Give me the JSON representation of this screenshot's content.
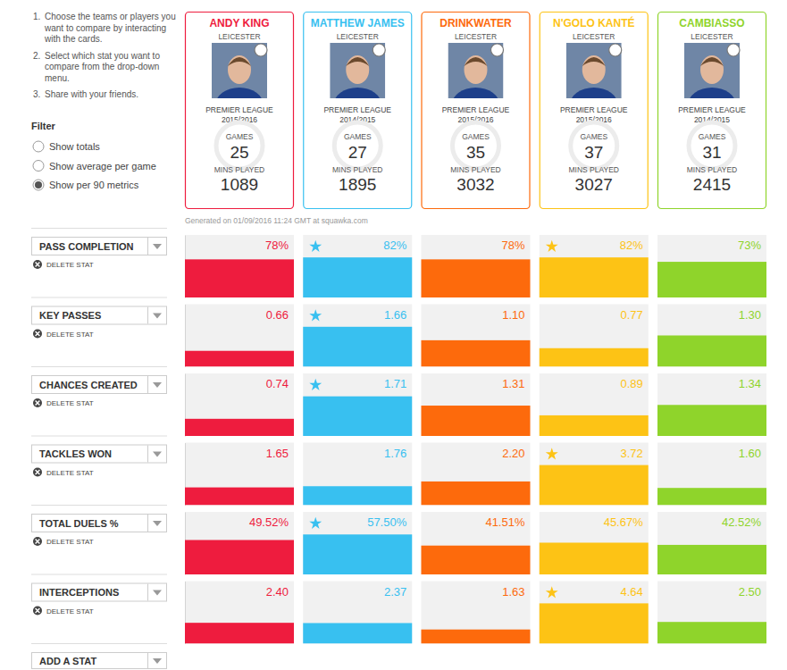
{
  "instructions": [
    {
      "number": "1.",
      "text": "Choose the teams or players you want to compare by interacting with the cards."
    },
    {
      "number": "2.",
      "text": "Select which stat you want to compare from the drop-down menu."
    },
    {
      "number": "3.",
      "text": "Share with your friends."
    }
  ],
  "filter": {
    "title": "Filter",
    "options": [
      "Show totals",
      "Show average per game",
      "Show per 90 metrics"
    ],
    "selected": 2
  },
  "cards": [
    {
      "name": "ANDY KING",
      "club": "LEICESTER",
      "league": "PREMIER LEAGUE",
      "season": "2015/2016",
      "games_label": "GAMES",
      "games": 25,
      "mins_label": "MINS PLAYED",
      "mins": 1089,
      "color": "#ee1c3e"
    },
    {
      "name": "MATTHEW JAMES",
      "club": "LEICESTER",
      "league": "PREMIER LEAGUE",
      "season": "2014/2015",
      "games_label": "GAMES",
      "games": 27,
      "mins_label": "MINS PLAYED",
      "mins": 1895,
      "color": "#38c0f0"
    },
    {
      "name": "DRINKWATER",
      "club": "LEICESTER",
      "league": "PREMIER LEAGUE",
      "season": "2015/2016",
      "games_label": "GAMES",
      "games": 35,
      "mins_label": "MINS PLAYED",
      "mins": 3032,
      "color": "#fd6a0c"
    },
    {
      "name": "N'GOLO KANTÉ",
      "club": "LEICESTER",
      "league": "PREMIER LEAGUE",
      "season": "2015/2016",
      "games_label": "GAMES",
      "games": 37,
      "mins_label": "MINS PLAYED",
      "mins": 3027,
      "color": "#fdc315"
    },
    {
      "name": "CAMBIASSO",
      "club": "LEICESTER",
      "league": "PREMIER LEAGUE",
      "season": "2014/2015",
      "games_label": "GAMES",
      "games": 31,
      "mins_label": "MINS PLAYED",
      "mins": 2415,
      "color": "#8fd42b"
    }
  ],
  "generated": "Generated on 01/09/2016 11:24 GMT at squawka.com",
  "delete_label": "DELETE STAT",
  "add_stat": "ADD A STAT",
  "chart_data": [
    {
      "type": "bar",
      "title": "PASS COMPLETION",
      "categories": [
        null,
        null,
        null,
        null,
        null
      ],
      "values": [
        78,
        82,
        78,
        82,
        73
      ],
      "value_labels": [
        "78%",
        "82%",
        "78%",
        "82%",
        "73%"
      ],
      "starred": [
        false,
        true,
        false,
        true,
        false
      ],
      "colors": [
        "#ee1c3e",
        "#38c0f0",
        "#fd6a0c",
        "#fdc315",
        "#8fd42b"
      ],
      "ylim": [
        0,
        128
      ],
      "data_labels": true,
      "tick_labels": false
    },
    {
      "type": "bar",
      "title": "KEY PASSES",
      "categories": [
        null,
        null,
        null,
        null,
        null
      ],
      "values": [
        0.66,
        1.66,
        1.1,
        0.77,
        1.3
      ],
      "value_labels": [
        "0.66",
        "1.66",
        "1.10",
        "0.77",
        "1.30"
      ],
      "starred": [
        false,
        true,
        false,
        false,
        false
      ],
      "colors": [
        "#ee1c3e",
        "#38c0f0",
        "#fd6a0c",
        "#fdc315",
        "#8fd42b"
      ],
      "ylim": [
        0,
        2.6
      ],
      "data_labels": true,
      "tick_labels": false
    },
    {
      "type": "bar",
      "title": "CHANCES CREATED",
      "categories": [
        null,
        null,
        null,
        null,
        null
      ],
      "values": [
        0.74,
        1.71,
        1.31,
        0.89,
        1.34
      ],
      "value_labels": [
        "0.74",
        "1.71",
        "1.31",
        "0.89",
        "1.34"
      ],
      "starred": [
        false,
        true,
        false,
        false,
        false
      ],
      "colors": [
        "#ee1c3e",
        "#38c0f0",
        "#fd6a0c",
        "#fdc315",
        "#8fd42b"
      ],
      "ylim": [
        0,
        2.7
      ],
      "data_labels": true,
      "tick_labels": false
    },
    {
      "type": "bar",
      "title": "TACKLES WON",
      "categories": [
        null,
        null,
        null,
        null,
        null
      ],
      "values": [
        1.65,
        1.76,
        2.2,
        3.72,
        1.6
      ],
      "value_labels": [
        "1.65",
        "1.76",
        "2.20",
        "3.72",
        "1.60"
      ],
      "starred": [
        false,
        false,
        false,
        true,
        false
      ],
      "colors": [
        "#ee1c3e",
        "#38c0f0",
        "#fd6a0c",
        "#fdc315",
        "#8fd42b"
      ],
      "ylim": [
        0,
        5.8
      ],
      "data_labels": true,
      "tick_labels": false
    },
    {
      "type": "bar",
      "title": "TOTAL DUELS %",
      "categories": [
        null,
        null,
        null,
        null,
        null
      ],
      "values": [
        49.52,
        57.5,
        41.51,
        45.67,
        42.52
      ],
      "value_labels": [
        "49.52%",
        "57.50%",
        "41.51%",
        "45.67%",
        "42.52%"
      ],
      "starred": [
        false,
        true,
        false,
        false,
        false
      ],
      "colors": [
        "#ee1c3e",
        "#38c0f0",
        "#fd6a0c",
        "#fdc315",
        "#8fd42b"
      ],
      "ylim": [
        0,
        90
      ],
      "data_labels": true,
      "tick_labels": false
    },
    {
      "type": "bar",
      "title": "INTERCEPTIONS",
      "categories": [
        null,
        null,
        null,
        null,
        null
      ],
      "values": [
        2.4,
        2.37,
        1.63,
        4.64,
        2.5
      ],
      "value_labels": [
        "2.40",
        "2.37",
        "1.63",
        "4.64",
        "2.50"
      ],
      "starred": [
        false,
        false,
        false,
        true,
        false
      ],
      "colors": [
        "#ee1c3e",
        "#38c0f0",
        "#fd6a0c",
        "#fdc315",
        "#8fd42b"
      ],
      "ylim": [
        0,
        7.2
      ],
      "data_labels": true,
      "tick_labels": false
    }
  ]
}
